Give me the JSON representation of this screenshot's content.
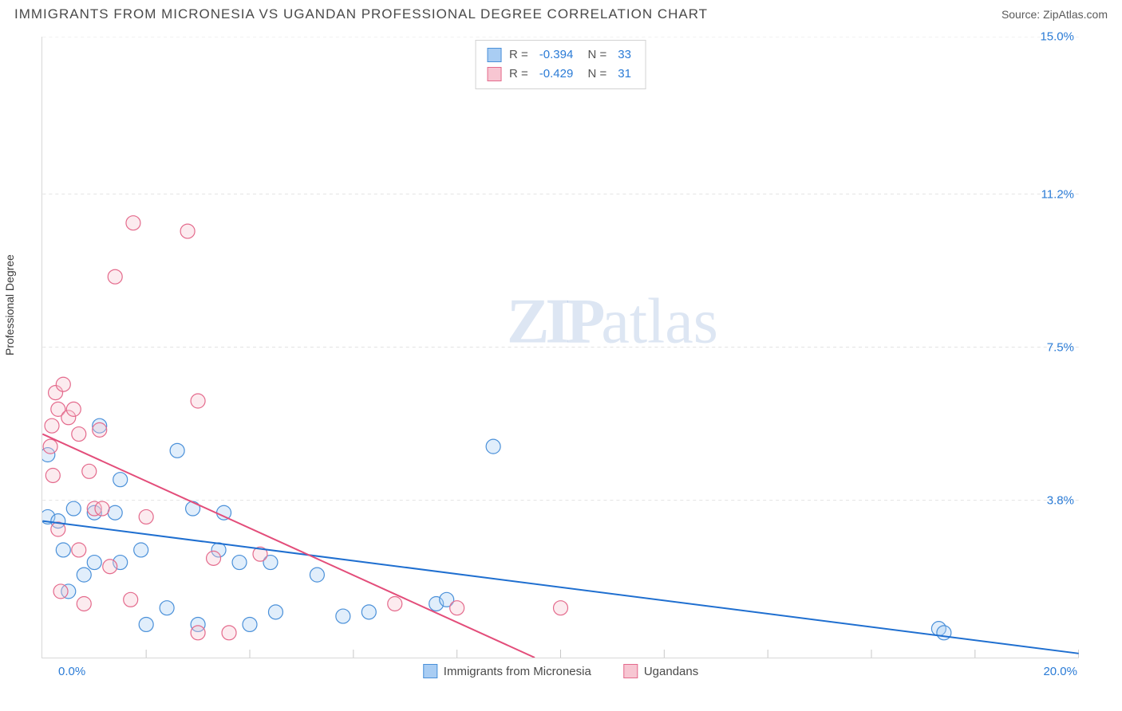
{
  "header": {
    "title": "IMMIGRANTS FROM MICRONESIA VS UGANDAN PROFESSIONAL DEGREE CORRELATION CHART",
    "source_prefix": "Source: ",
    "source_link": "ZipAtlas.com"
  },
  "chart": {
    "type": "scatter",
    "y_axis_title": "Professional Degree",
    "x_axis_title_hidden": "Immigrants from Micronesia / Ugandans",
    "xlim": [
      0,
      20
    ],
    "ylim": [
      0,
      15
    ],
    "x_ticks": [
      2.0,
      4.0,
      6.0,
      8.0,
      10.0,
      12.0,
      14.0,
      16.0,
      18.0,
      20.0
    ],
    "y_gridlines": [
      3.8,
      7.5,
      11.2,
      15.0
    ],
    "y_tick_labels": [
      "3.8%",
      "7.5%",
      "11.2%",
      "15.0%"
    ],
    "x_min_label": "0.0%",
    "x_max_label": "20.0%",
    "background_color": "#ffffff",
    "grid_color": "#e3e3e3",
    "grid_dash": "4,4",
    "axis_color": "#d8d8d8",
    "tick_color": "#c8c8c8",
    "marker_radius": 9,
    "marker_stroke_width": 1.2,
    "marker_fill_opacity": 0.35,
    "trend_line_width": 2,
    "y_label_color": "#2a7bd6",
    "series": [
      {
        "name": "Immigrants from Micronesia",
        "fill_color": "#a9cdf3",
        "stroke_color": "#4a90d9",
        "trend_color": "#1f6fd0",
        "R": -0.394,
        "N": 33,
        "trend": {
          "x1": 0.0,
          "y1": 3.3,
          "x2": 20.0,
          "y2": 0.1
        },
        "points": [
          [
            0.1,
            4.9
          ],
          [
            0.1,
            3.4
          ],
          [
            0.3,
            3.3
          ],
          [
            0.4,
            2.6
          ],
          [
            0.5,
            1.6
          ],
          [
            0.6,
            3.6
          ],
          [
            0.8,
            2.0
          ],
          [
            1.0,
            2.3
          ],
          [
            1.0,
            3.5
          ],
          [
            1.1,
            5.6
          ],
          [
            1.4,
            3.5
          ],
          [
            1.5,
            2.3
          ],
          [
            1.5,
            4.3
          ],
          [
            1.9,
            2.6
          ],
          [
            2.0,
            0.8
          ],
          [
            2.4,
            1.2
          ],
          [
            2.6,
            5.0
          ],
          [
            2.9,
            3.6
          ],
          [
            3.0,
            0.8
          ],
          [
            3.4,
            2.6
          ],
          [
            3.5,
            3.5
          ],
          [
            3.8,
            2.3
          ],
          [
            4.0,
            0.8
          ],
          [
            4.4,
            2.3
          ],
          [
            4.5,
            1.1
          ],
          [
            5.3,
            2.0
          ],
          [
            5.8,
            1.0
          ],
          [
            6.3,
            1.1
          ],
          [
            7.6,
            1.3
          ],
          [
            7.8,
            1.4
          ],
          [
            8.7,
            5.1
          ],
          [
            17.3,
            0.7
          ],
          [
            17.4,
            0.6
          ]
        ]
      },
      {
        "name": "Ugandans",
        "fill_color": "#f7c6d2",
        "stroke_color": "#e46a8c",
        "trend_color": "#e34d7a",
        "R": -0.429,
        "N": 31,
        "trend": {
          "x1": 0.0,
          "y1": 5.4,
          "x2": 9.5,
          "y2": 0.0
        },
        "points": [
          [
            0.15,
            5.1
          ],
          [
            0.18,
            5.6
          ],
          [
            0.2,
            4.4
          ],
          [
            0.25,
            6.4
          ],
          [
            0.3,
            6.0
          ],
          [
            0.3,
            3.1
          ],
          [
            0.35,
            1.6
          ],
          [
            0.4,
            6.6
          ],
          [
            0.5,
            5.8
          ],
          [
            0.6,
            6.0
          ],
          [
            0.7,
            5.4
          ],
          [
            0.7,
            2.6
          ],
          [
            0.8,
            1.3
          ],
          [
            0.9,
            4.5
          ],
          [
            1.0,
            3.6
          ],
          [
            1.1,
            5.5
          ],
          [
            1.15,
            3.6
          ],
          [
            1.3,
            2.2
          ],
          [
            1.4,
            9.2
          ],
          [
            1.7,
            1.4
          ],
          [
            1.75,
            10.5
          ],
          [
            2.0,
            3.4
          ],
          [
            2.8,
            10.3
          ],
          [
            3.0,
            6.2
          ],
          [
            3.0,
            0.6
          ],
          [
            3.3,
            2.4
          ],
          [
            3.6,
            0.6
          ],
          [
            4.2,
            2.5
          ],
          [
            6.8,
            1.3
          ],
          [
            8.0,
            1.2
          ],
          [
            10.0,
            1.2
          ]
        ]
      }
    ],
    "watermark": {
      "bold": "ZIP",
      "rest": "atlas"
    }
  }
}
